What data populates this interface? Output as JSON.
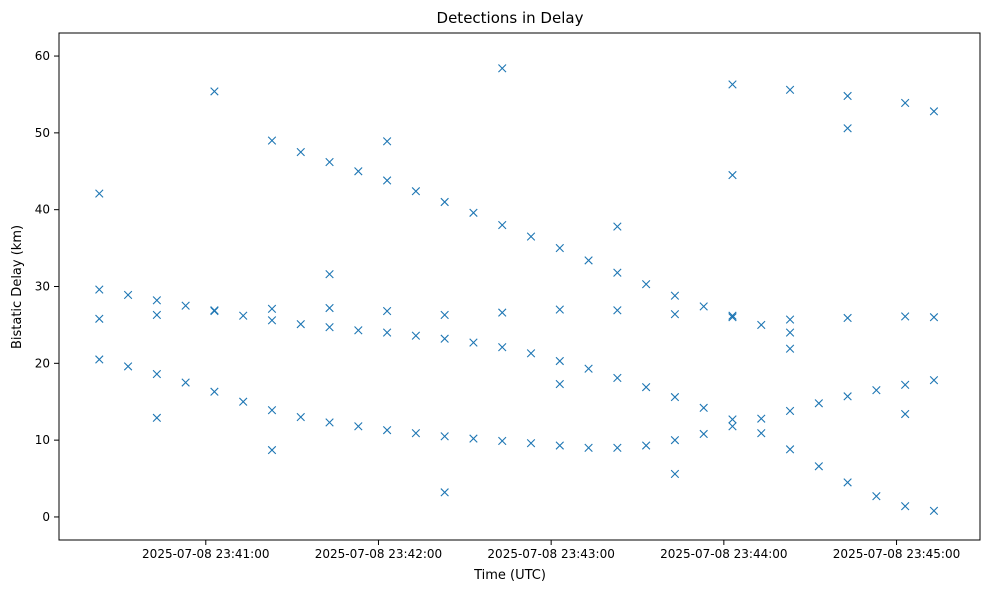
{
  "chart_data": {
    "type": "scatter",
    "title": "Detections in Delay",
    "xlabel": "Time (UTC)",
    "ylabel": "Bistatic Delay (km)",
    "x_unit": "time",
    "x_axis_start": "2025-07-08 23:40:09",
    "x_axis_end": "2025-07-08 23:45:29",
    "xlim_sec": [
      0,
      320
    ],
    "ylim": [
      -3,
      63
    ],
    "x_ticks": [
      {
        "sec": 51,
        "label": "2025-07-08 23:41:00"
      },
      {
        "sec": 111,
        "label": "2025-07-08 23:42:00"
      },
      {
        "sec": 171,
        "label": "2025-07-08 23:43:00"
      },
      {
        "sec": 231,
        "label": "2025-07-08 23:44:00"
      },
      {
        "sec": 291,
        "label": "2025-07-08 23:45:00"
      }
    ],
    "y_ticks": [
      0,
      10,
      20,
      30,
      40,
      50,
      60
    ],
    "marker": "x",
    "color": "#1f77b4",
    "grid": false,
    "legend": false,
    "series": [
      {
        "x": [
          "2025-07-08 23:40:23",
          "2025-07-08 23:40:33",
          "2025-07-08 23:40:43",
          "2025-07-08 23:40:53",
          "2025-07-08 23:41:03",
          "2025-07-08 23:41:13",
          "2025-07-08 23:41:23",
          "2025-07-08 23:41:33",
          "2025-07-08 23:41:43",
          "2025-07-08 23:41:53",
          "2025-07-08 23:42:03",
          "2025-07-08 23:42:13",
          "2025-07-08 23:42:23",
          "2025-07-08 23:42:33",
          "2025-07-08 23:42:43",
          "2025-07-08 23:42:53",
          "2025-07-08 23:43:03",
          "2025-07-08 23:43:13",
          "2025-07-08 23:43:23",
          "2025-07-08 23:43:33",
          "2025-07-08 23:43:43",
          "2025-07-08 23:43:53",
          "2025-07-08 23:44:03",
          "2025-07-08 23:44:13",
          "2025-07-08 23:44:23",
          "2025-07-08 23:44:33",
          "2025-07-08 23:44:43",
          "2025-07-08 23:44:53",
          "2025-07-08 23:45:03",
          "2025-07-08 23:45:13"
        ],
        "y": [
          20.5,
          19.6,
          18.6,
          17.5,
          16.3,
          15.0,
          13.9,
          13.0,
          12.3,
          11.8,
          11.3,
          10.9,
          10.5,
          10.2,
          9.9,
          9.6,
          9.3,
          9.0,
          9.0,
          9.3,
          10.0,
          10.8,
          11.8,
          12.8,
          13.8,
          14.8,
          15.7,
          16.5,
          17.2,
          17.8
        ]
      },
      {
        "x": [
          "2025-07-08 23:40:23",
          "2025-07-08 23:40:33",
          "2025-07-08 23:40:43",
          "2025-07-08 23:40:53",
          "2025-07-08 23:41:03",
          "2025-07-08 23:41:13",
          "2025-07-08 23:41:23",
          "2025-07-08 23:41:33",
          "2025-07-08 23:41:43",
          "2025-07-08 23:41:53",
          "2025-07-08 23:42:03",
          "2025-07-08 23:42:13",
          "2025-07-08 23:42:23",
          "2025-07-08 23:42:33",
          "2025-07-08 23:42:43",
          "2025-07-08 23:42:53",
          "2025-07-08 23:43:03",
          "2025-07-08 23:43:13",
          "2025-07-08 23:43:23",
          "2025-07-08 23:43:33",
          "2025-07-08 23:43:43",
          "2025-07-08 23:43:53",
          "2025-07-08 23:44:03",
          "2025-07-08 23:44:13",
          "2025-07-08 23:44:23",
          "2025-07-08 23:44:33",
          "2025-07-08 23:44:43",
          "2025-07-08 23:44:53",
          "2025-07-08 23:45:03",
          "2025-07-08 23:45:13"
        ],
        "y": [
          29.6,
          28.9,
          28.2,
          27.5,
          26.8,
          26.2,
          25.6,
          25.1,
          24.7,
          24.3,
          24.0,
          23.6,
          23.2,
          22.7,
          22.1,
          21.3,
          20.3,
          19.3,
          18.1,
          16.9,
          15.6,
          14.2,
          12.7,
          10.9,
          8.8,
          6.6,
          4.5,
          2.7,
          1.4,
          0.8
        ]
      },
      {
        "x": [
          "2025-07-08 23:41:23",
          "2025-07-08 23:41:33",
          "2025-07-08 23:41:43",
          "2025-07-08 23:41:53",
          "2025-07-08 23:42:03",
          "2025-07-08 23:42:13",
          "2025-07-08 23:42:23",
          "2025-07-08 23:42:33",
          "2025-07-08 23:42:43",
          "2025-07-08 23:42:53",
          "2025-07-08 23:43:03",
          "2025-07-08 23:43:13",
          "2025-07-08 23:43:23",
          "2025-07-08 23:43:33",
          "2025-07-08 23:43:43",
          "2025-07-08 23:43:53",
          "2025-07-08 23:44:03",
          "2025-07-08 23:44:13",
          "2025-07-08 23:44:23"
        ],
        "y": [
          49.0,
          47.5,
          46.2,
          45.0,
          43.8,
          42.4,
          41.0,
          39.6,
          38.0,
          36.5,
          35.0,
          33.4,
          31.8,
          30.3,
          28.8,
          27.4,
          26.2,
          25.0,
          24.0
        ]
      },
      {
        "x": [
          "2025-07-08 23:40:23",
          "2025-07-08 23:40:43",
          "2025-07-08 23:41:03",
          "2025-07-08 23:41:23",
          "2025-07-08 23:41:43",
          "2025-07-08 23:42:03",
          "2025-07-08 23:42:23",
          "2025-07-08 23:42:43",
          "2025-07-08 23:43:03",
          "2025-07-08 23:43:23",
          "2025-07-08 23:43:43",
          "2025-07-08 23:44:03",
          "2025-07-08 23:44:23",
          "2025-07-08 23:44:43",
          "2025-07-08 23:45:03",
          "2025-07-08 23:45:13"
        ],
        "y": [
          25.8,
          26.3,
          26.9,
          27.1,
          27.2,
          26.8,
          26.3,
          26.6,
          27.0,
          26.9,
          26.4,
          26.0,
          25.7,
          25.9,
          26.1,
          26.0
        ]
      },
      {
        "x": [
          "2025-07-08 23:44:03",
          "2025-07-08 23:44:23",
          "2025-07-08 23:44:43",
          "2025-07-08 23:45:03",
          "2025-07-08 23:45:13"
        ],
        "y": [
          56.3,
          55.6,
          54.8,
          53.9,
          52.8
        ]
      },
      {
        "x": [
          "2025-07-08 23:40:23",
          "2025-07-08 23:40:43",
          "2025-07-08 23:41:03",
          "2025-07-08 23:41:23",
          "2025-07-08 23:41:43",
          "2025-07-08 23:42:03",
          "2025-07-08 23:42:23",
          "2025-07-08 23:42:43",
          "2025-07-08 23:43:03",
          "2025-07-08 23:43:23",
          "2025-07-08 23:43:43",
          "2025-07-08 23:44:03",
          "2025-07-08 23:44:23",
          "2025-07-08 23:44:43",
          "2025-07-08 23:45:03"
        ],
        "y": [
          42.1,
          12.9,
          55.4,
          8.7,
          31.6,
          48.9,
          3.2,
          58.4,
          17.3,
          37.8,
          5.6,
          44.5,
          21.9,
          50.6,
          13.4
        ]
      }
    ]
  }
}
